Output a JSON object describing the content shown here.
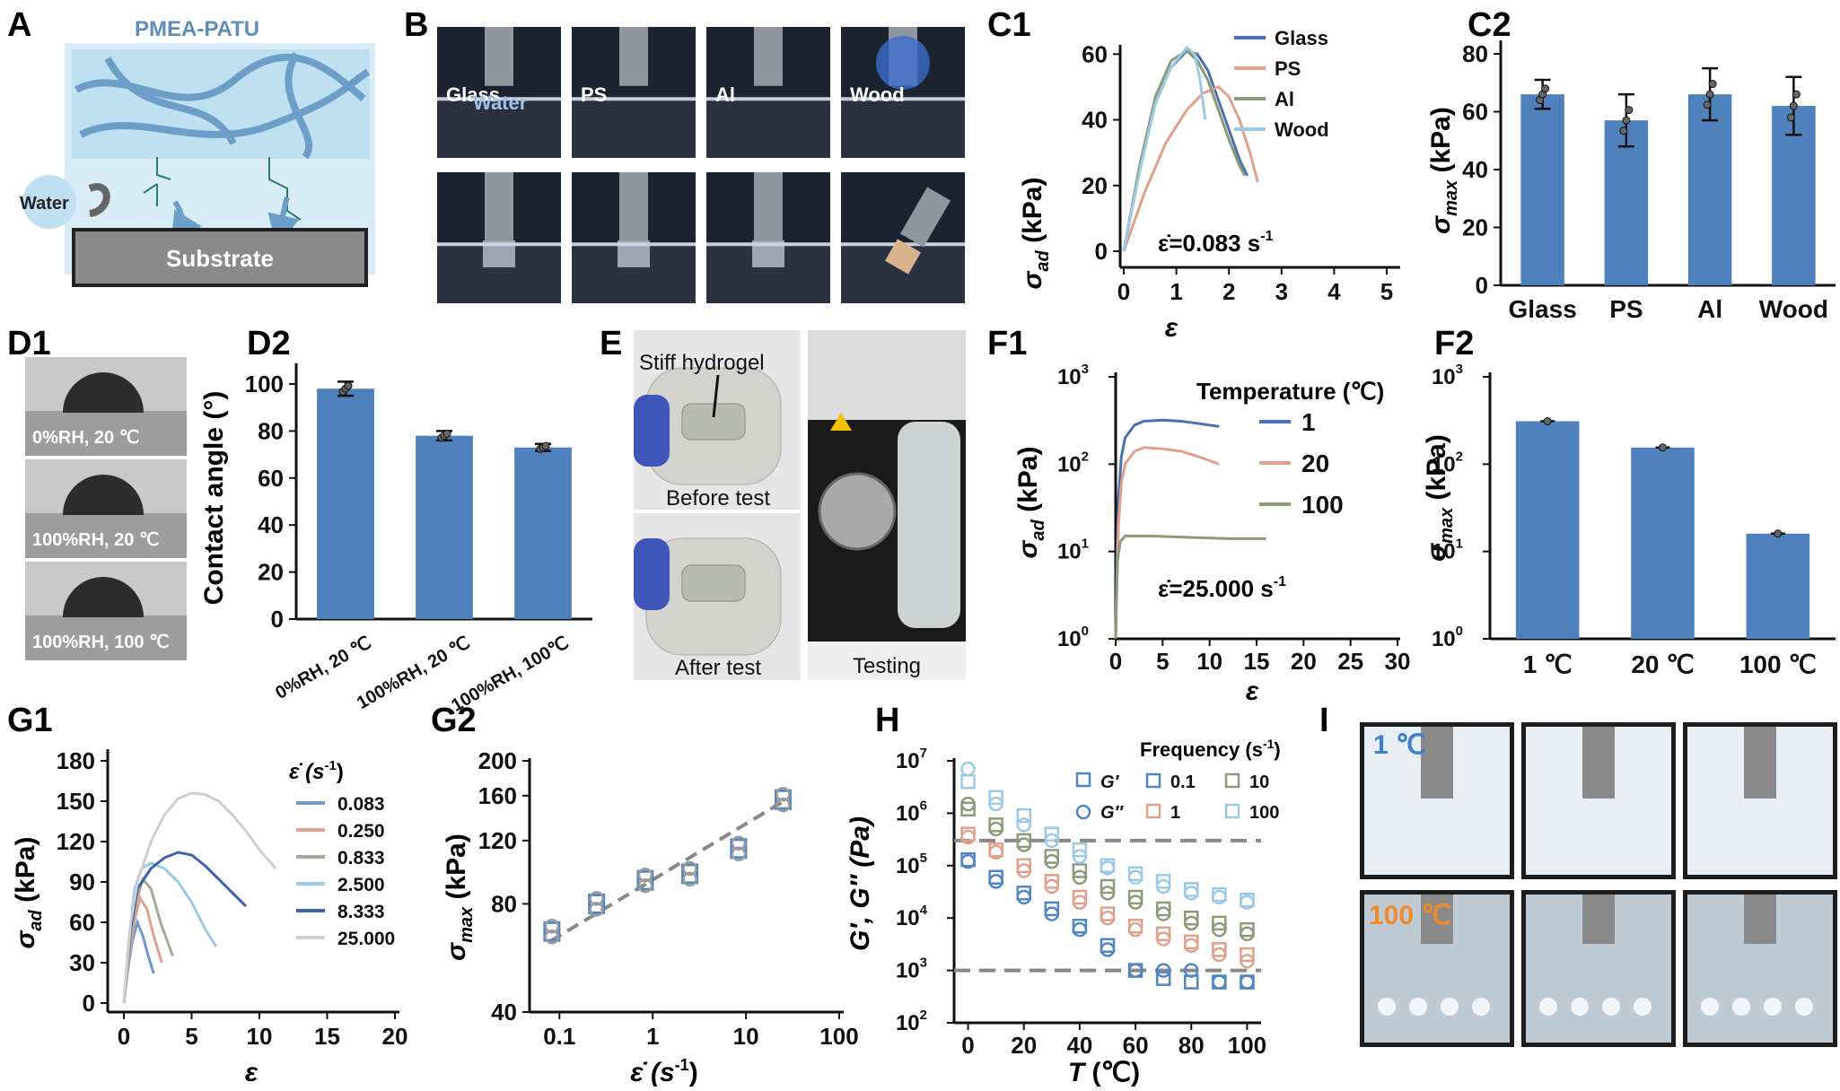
{
  "panels": {
    "A": {
      "label": "A",
      "polymer": "PMEA-PATU",
      "water": "Water",
      "substrate": "Substrate"
    },
    "B": {
      "label": "B",
      "top": [
        "Glass",
        "PS",
        "Al",
        "Wood"
      ],
      "water": "Water"
    },
    "C1": {
      "label": "C1",
      "ylabel_main": "σ",
      "ylabel_sub": "ad",
      "ylabel_unit": " (kPa)",
      "xlabel": "ε",
      "rate": "ε̇=0.083 s",
      "rate_exp": "-1"
    },
    "C2": {
      "label": "C2",
      "ylabel_main": "σ",
      "ylabel_sub": "max",
      "ylabel_unit": " (kPa)"
    },
    "D1": {
      "label": "D1",
      "photos": [
        "0%RH, 20 ℃",
        "100%RH, 20 ℃",
        "100%RH, 100 ℃"
      ]
    },
    "D2": {
      "label": "D2",
      "ylabel": "Contact angle (°)"
    },
    "E": {
      "label": "E",
      "stiff": "Stiff hydrogel",
      "before": "Before test",
      "after": "After test",
      "testing": "Testing"
    },
    "F1": {
      "label": "F1",
      "ylabel_main": "σ",
      "ylabel_sub": "ad",
      "ylabel_unit": " (kPa)",
      "xlabel": "ε",
      "legend_title": "Temperature (℃)",
      "rate": "ε̇=25.000 s",
      "rate_exp": "-1"
    },
    "F2": {
      "label": "F2",
      "ylabel_main": "σ",
      "ylabel_sub": "max",
      "ylabel_unit": " (kPa)"
    },
    "G1": {
      "label": "G1",
      "ylabel_main": "σ",
      "ylabel_sub": "ad",
      "ylabel_unit": " (kPa)",
      "xlabel": "ε",
      "legend_title": "ε̇ (s",
      "legend_exp": "-1",
      "legend_close": ")"
    },
    "G2": {
      "label": "G2",
      "ylabel_main": "σ",
      "ylabel_sub": "max",
      "ylabel_unit": " (kPa)",
      "xlabel": "ε̇ (s",
      "xlabel_exp": "-1",
      "xlabel_close": ")"
    },
    "H": {
      "label": "H",
      "ylabel": "G′, G″ (Pa)",
      "xlabel_main": "T",
      "xlabel_unit": " (℃)",
      "legend_title": "Frequency (s",
      "legend_exp": "-1",
      "legend_close": ")",
      "gp": "G′",
      "gpp": "G″",
      "freqs": [
        "0.1",
        "10",
        "1",
        "100"
      ]
    },
    "I": {
      "label": "I",
      "top": "1 ℃",
      "bottom": "100 ℃"
    }
  },
  "colors": {
    "bar": "#4f81bd",
    "glass": "#4a72b0",
    "ps": "#e0a08c",
    "al": "#8d9a78",
    "wood": "#9ccae6",
    "t1": "#4a72b0",
    "t20": "#e0a08c",
    "t100": "#8d9a78",
    "r0083": "#6f9ad0",
    "r025": "#e0a08c",
    "r0833": "#a8a89a",
    "r25": "#9ccae6",
    "r8333": "#3e64ae",
    "r25000": "#cfcfcf",
    "f01": "#4f86c6",
    "f1": "#e0a08c",
    "f10": "#8d9a78",
    "f100": "#9ccae6"
  },
  "chart_data": [
    {
      "id": "C1",
      "type": "line",
      "ylim": [
        0,
        65
      ],
      "xlim": [
        0,
        5
      ],
      "xticks": [
        "0",
        "1",
        "2",
        "3",
        "4",
        "5"
      ],
      "yticks": [
        "0",
        "20",
        "40",
        "60"
      ],
      "series": [
        {
          "name": "Glass",
          "x": [
            0,
            0.3,
            0.6,
            0.9,
            1.2,
            1.4,
            1.6,
            1.8,
            2.0,
            2.2,
            2.35
          ],
          "y": [
            0,
            25,
            45,
            56,
            61,
            60,
            55,
            46,
            37,
            28,
            23
          ]
        },
        {
          "name": "PS",
          "x": [
            0,
            0.4,
            0.8,
            1.2,
            1.5,
            1.8,
            2.0,
            2.2,
            2.4,
            2.55
          ],
          "y": [
            0,
            18,
            33,
            43,
            48,
            50,
            47,
            40,
            30,
            21
          ]
        },
        {
          "name": "Al",
          "x": [
            0,
            0.3,
            0.6,
            0.9,
            1.2,
            1.4,
            1.6,
            1.8,
            2.0,
            2.2,
            2.3
          ],
          "y": [
            0,
            26,
            47,
            58,
            61,
            58,
            52,
            43,
            34,
            26,
            23
          ]
        },
        {
          "name": "Wood",
          "x": [
            0,
            0.3,
            0.6,
            0.9,
            1.2,
            1.35,
            1.45,
            1.55
          ],
          "y": [
            0,
            24,
            45,
            56,
            62,
            60,
            52,
            40
          ]
        }
      ]
    },
    {
      "id": "C2",
      "type": "bar",
      "ylim": [
        0,
        80
      ],
      "categories": [
        "Glass",
        "PS",
        "Al",
        "Wood"
      ],
      "values": [
        66,
        57,
        66,
        62
      ],
      "err": [
        5,
        9,
        9,
        10
      ],
      "yticks": [
        "0",
        "20",
        "40",
        "60",
        "80"
      ]
    },
    {
      "id": "D2",
      "type": "bar",
      "ylim": [
        0,
        100
      ],
      "categories": [
        "0%RH, 20 ℃",
        "100%RH, 20 ℃",
        "100%RH, 100℃"
      ],
      "values": [
        98,
        78,
        73
      ],
      "err": [
        3,
        2,
        1.5
      ],
      "yticks": [
        "0",
        "20",
        "40",
        "60",
        "80",
        "100"
      ]
    },
    {
      "id": "F1",
      "type": "line",
      "yscale": "log",
      "ylim": [
        1,
        1000
      ],
      "xlim": [
        0,
        30
      ],
      "xticks": [
        "0",
        "5",
        "10",
        "15",
        "20",
        "25",
        "30"
      ],
      "series": [
        {
          "name": "1",
          "x": [
            0,
            0.1,
            0.3,
            0.6,
            1,
            2,
            3,
            5,
            7,
            9,
            11
          ],
          "y": [
            1,
            5,
            40,
            120,
            200,
            280,
            310,
            320,
            310,
            290,
            270
          ]
        },
        {
          "name": "20",
          "x": [
            0,
            0.1,
            0.3,
            0.6,
            1,
            2,
            3,
            5,
            7,
            9,
            11
          ],
          "y": [
            1,
            3,
            20,
            60,
            100,
            140,
            155,
            150,
            140,
            120,
            100
          ]
        },
        {
          "name": "100",
          "x": [
            0,
            0.05,
            0.2,
            0.5,
            1,
            2,
            4,
            8,
            12,
            16
          ],
          "y": [
            1,
            2,
            8,
            13,
            15,
            15,
            15,
            14.5,
            14,
            14
          ]
        }
      ]
    },
    {
      "id": "F2",
      "type": "bar",
      "yscale": "log",
      "ylim": [
        1,
        1000
      ],
      "categories": [
        "1 ℃",
        "20 ℃",
        "100 ℃"
      ],
      "values": [
        310,
        155,
        16
      ]
    },
    {
      "id": "G1",
      "type": "line",
      "ylim": [
        0,
        180
      ],
      "xlim": [
        0,
        20
      ],
      "xticks": [
        "0",
        "5",
        "10",
        "15",
        "20"
      ],
      "yticks": [
        "0",
        "30",
        "60",
        "90",
        "120",
        "150",
        "180"
      ],
      "series": [
        {
          "name": "0.083",
          "x": [
            0,
            0.3,
            0.6,
            1,
            1.4,
            1.8,
            2.2
          ],
          "y": [
            0,
            25,
            45,
            60,
            50,
            35,
            22
          ]
        },
        {
          "name": "0.250",
          "x": [
            0,
            0.4,
            0.8,
            1.2,
            1.7,
            2.2,
            2.8
          ],
          "y": [
            0,
            35,
            62,
            78,
            70,
            50,
            30
          ]
        },
        {
          "name": "0.833",
          "x": [
            0,
            0.4,
            0.9,
            1.4,
            2.0,
            2.7,
            3.6
          ],
          "y": [
            0,
            40,
            75,
            92,
            85,
            60,
            35
          ]
        },
        {
          "name": "2.500",
          "x": [
            0,
            0.4,
            0.8,
            1.3,
            2,
            3,
            4,
            5,
            6,
            6.8
          ],
          "y": [
            0,
            50,
            85,
            100,
            104,
            100,
            90,
            75,
            55,
            42
          ]
        },
        {
          "name": "8.333",
          "x": [
            0,
            0.5,
            1,
            2,
            3,
            4,
            5,
            6,
            7,
            8,
            9
          ],
          "y": [
            0,
            55,
            85,
            100,
            108,
            112,
            110,
            102,
            92,
            82,
            72
          ]
        },
        {
          "name": "25.000",
          "x": [
            0,
            0.5,
            1,
            2,
            3,
            4,
            5,
            6,
            7,
            8,
            9,
            10,
            11.2
          ],
          "y": [
            0,
            60,
            90,
            120,
            140,
            152,
            156,
            155,
            150,
            140,
            128,
            114,
            100
          ]
        }
      ]
    },
    {
      "id": "G2",
      "type": "scatter",
      "xscale": "log",
      "yscale": "log",
      "xlim": [
        0.05,
        100
      ],
      "ylim": [
        40,
        200
      ],
      "xticks": [
        "0.1",
        "1",
        "10",
        "100"
      ],
      "yticks": [
        "40",
        "80",
        "120",
        "160",
        "200"
      ],
      "x": [
        0.083,
        0.25,
        0.833,
        2.5,
        8.333,
        25
      ],
      "y": [
        67,
        80,
        93,
        97,
        114,
        156
      ]
    },
    {
      "id": "H",
      "type": "scatter",
      "yscale": "log",
      "ylim": [
        100,
        10000000
      ],
      "xlim": [
        -5,
        105
      ],
      "xticks": [
        "0",
        "20",
        "40",
        "60",
        "80",
        "100"
      ],
      "hlines": [
        300000,
        1000
      ]
    }
  ]
}
